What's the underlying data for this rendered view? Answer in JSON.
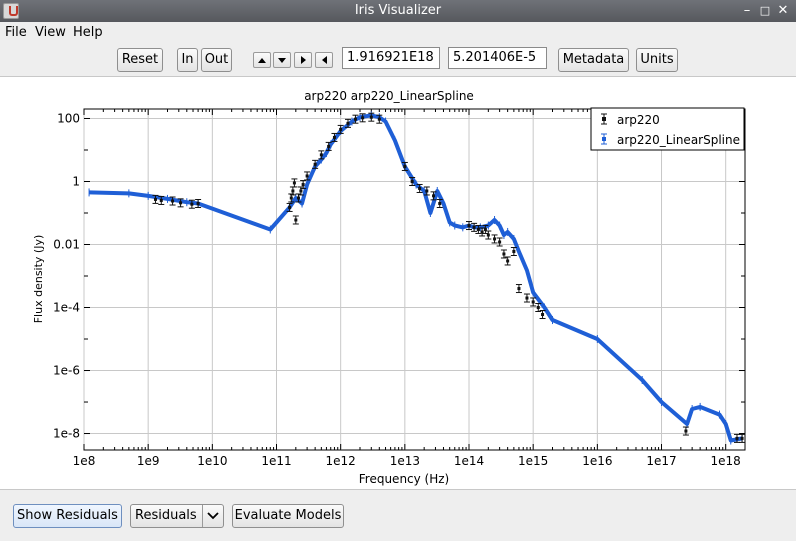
{
  "window": {
    "title": "Iris Visualizer",
    "app_icon": "iris-app-icon",
    "controls": [
      "minimize-icon",
      "maximize-icon",
      "close-icon"
    ]
  },
  "menubar": {
    "items": [
      "File",
      "View",
      "Help"
    ]
  },
  "toolbar": {
    "reset_label": "Reset",
    "zoom_in_label": "In",
    "zoom_out_label": "Out",
    "pan_icons": [
      "arrow-up-icon",
      "arrow-down-icon",
      "arrow-right-icon",
      "arrow-left-icon"
    ],
    "x_coord": "1.916921E18",
    "y_coord": "5.201406E-5",
    "metadata_label": "Metadata",
    "units_label": "Units"
  },
  "bottom": {
    "show_residuals_label": "Show Residuals",
    "residuals_select_value": "Residuals",
    "evaluate_models_label": "Evaluate Models"
  },
  "chart_data": {
    "type": "scatter",
    "title": "arp220 arp220_LinearSpline",
    "xlabel": "Frequency (Hz)",
    "ylabel": "Flux density (Jy)",
    "x_scale": "log",
    "y_scale": "log",
    "xlim": [
      100000000.0,
      2e+18
    ],
    "ylim": [
      3e-09,
      200
    ],
    "x_ticks": [
      "1e8",
      "1e9",
      "1e10",
      "1e11",
      "1e12",
      "1e13",
      "1e14",
      "1e15",
      "1e16",
      "1e17",
      "1e18"
    ],
    "y_ticks": [
      "1e-8",
      "1e-6",
      "1e-4",
      "0.01",
      "1",
      "100"
    ],
    "grid": true,
    "legend_position": "top-right",
    "series": [
      {
        "name": "arp220",
        "color": "#111111",
        "points": [
          [
            1300000000.0,
            0.27
          ],
          [
            1600000000.0,
            0.25
          ],
          [
            2400000000.0,
            0.24
          ],
          [
            3200000000.0,
            0.21
          ],
          [
            4800000000.0,
            0.19
          ],
          [
            6000000000.0,
            0.2
          ],
          [
            160000000000.0,
            0.15
          ],
          [
            170000000000.0,
            0.3
          ],
          [
            180000000000.0,
            0.5
          ],
          [
            190000000000.0,
            0.9
          ],
          [
            200000000000.0,
            0.06
          ],
          [
            220000000000.0,
            0.3
          ],
          [
            240000000000.0,
            0.5
          ],
          [
            260000000000.0,
            0.8
          ],
          [
            300000000000.0,
            1.5
          ],
          [
            400000000000.0,
            3.5
          ],
          [
            500000000000.0,
            7.0
          ],
          [
            650000000000.0,
            13
          ],
          [
            800000000000.0,
            25
          ],
          [
            1000000000000.0,
            45
          ],
          [
            1300000000000.0,
            70
          ],
          [
            1700000000000.0,
            95
          ],
          [
            2200000000000.0,
            105
          ],
          [
            3000000000000.0,
            110
          ],
          [
            4000000000000.0,
            95
          ],
          [
            10000000000000.0,
            3.0
          ],
          [
            13000000000000.0,
            1.0
          ],
          [
            17000000000000.0,
            0.6
          ],
          [
            22000000000000.0,
            0.5
          ],
          [
            28000000000000.0,
            0.35
          ],
          [
            35000000000000.0,
            0.2
          ],
          [
            100000000000000.0,
            0.04
          ],
          [
            120000000000000.0,
            0.035
          ],
          [
            140000000000000.0,
            0.03
          ],
          [
            160000000000000.0,
            0.025
          ],
          [
            180000000000000.0,
            0.03
          ],
          [
            200000000000000.0,
            0.02
          ],
          [
            250000000000000.0,
            0.015
          ],
          [
            300000000000000.0,
            0.012
          ],
          [
            350000000000000.0,
            0.005
          ],
          [
            400000000000000.0,
            0.003
          ],
          [
            500000000000000.0,
            0.006
          ],
          [
            600000000000000.0,
            0.0004
          ],
          [
            800000000000000.0,
            0.0002
          ],
          [
            1000000000000000.0,
            0.00015
          ],
          [
            1200000000000000.0,
            0.0001
          ],
          [
            1400000000000000.0,
            6e-05
          ],
          [
            2.4e+17,
            1.2e-08
          ],
          [
            1.5e+18,
            7e-09
          ],
          [
            1.8e+18,
            7e-09
          ]
        ]
      },
      {
        "name": "arp220_LinearSpline",
        "color": "#1f5fd6",
        "points": [
          [
            120000000.0,
            0.45
          ],
          [
            500000000.0,
            0.42
          ],
          [
            1000000000.0,
            0.35
          ],
          [
            2000000000.0,
            0.28
          ],
          [
            4000000000.0,
            0.22
          ],
          [
            6000000000.0,
            0.2
          ],
          [
            80000000000.0,
            0.03
          ],
          [
            160000000000.0,
            0.15
          ],
          [
            200000000000.0,
            0.3
          ],
          [
            250000000000.0,
            0.2
          ],
          [
            300000000000.0,
            0.8
          ],
          [
            400000000000.0,
            3
          ],
          [
            500000000000.0,
            5
          ],
          [
            600000000000.0,
            8
          ],
          [
            700000000000.0,
            15
          ],
          [
            1000000000000.0,
            40
          ],
          [
            1500000000000.0,
            80
          ],
          [
            2000000000000.0,
            110
          ],
          [
            3000000000000.0,
            125
          ],
          [
            4000000000000.0,
            110
          ],
          [
            5000000000000.0,
            80
          ],
          [
            7000000000000.0,
            20
          ],
          [
            10000000000000.0,
            3
          ],
          [
            15000000000000.0,
            0.8
          ],
          [
            20000000000000.0,
            0.5
          ],
          [
            25000000000000.0,
            0.1
          ],
          [
            32000000000000.0,
            0.5
          ],
          [
            40000000000000.0,
            0.2
          ],
          [
            50000000000000.0,
            0.05
          ],
          [
            60000000000000.0,
            0.04
          ],
          [
            80000000000000.0,
            0.035
          ],
          [
            100000000000000.0,
            0.04
          ],
          [
            120000000000000.0,
            0.035
          ],
          [
            150000000000000.0,
            0.035
          ],
          [
            200000000000000.0,
            0.04
          ],
          [
            250000000000000.0,
            0.06
          ],
          [
            300000000000000.0,
            0.04
          ],
          [
            350000000000000.0,
            0.02
          ],
          [
            400000000000000.0,
            0.025
          ],
          [
            500000000000000.0,
            0.015
          ],
          [
            600000000000000.0,
            0.006
          ],
          [
            800000000000000.0,
            0.0015
          ],
          [
            1000000000000000.0,
            0.0003
          ],
          [
            1500000000000000.0,
            0.0001
          ],
          [
            2000000000000000.0,
            4e-05
          ],
          [
            1e+16,
            1e-05
          ],
          [
            5e+16,
            5e-07
          ],
          [
            1e+17,
            1e-07
          ],
          [
            2.5e+17,
            2e-08
          ],
          [
            3e+17,
            6e-08
          ],
          [
            4e+17,
            7e-08
          ],
          [
            8e+17,
            4e-08
          ],
          [
            1e+18,
            2e-08
          ],
          [
            1.2e+18,
            6e-09
          ],
          [
            1.8e+18,
            7e-09
          ]
        ]
      }
    ]
  }
}
